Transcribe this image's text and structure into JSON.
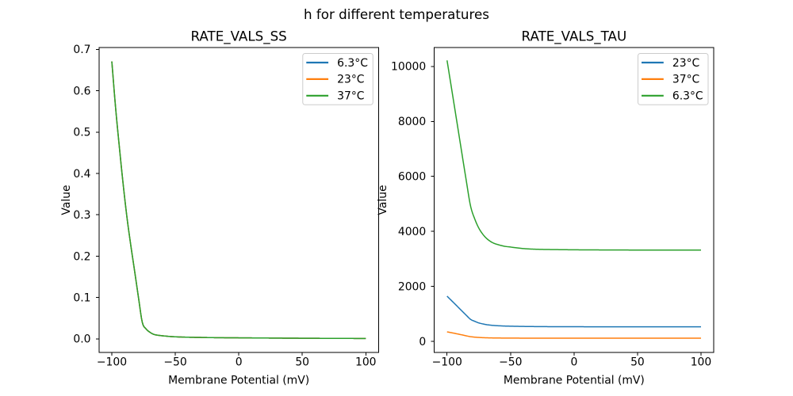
{
  "figure": {
    "suptitle": "h for different temperatures",
    "colors": {
      "blue": "#1f77b4",
      "orange": "#ff7f0e",
      "green": "#2ca02c"
    }
  },
  "chart_data": [
    {
      "type": "line",
      "title": "RATE_VALS_SS",
      "xlabel": "Membrane Potential (mV)",
      "ylabel": "Value",
      "xlim": [
        -110,
        110
      ],
      "ylim": [
        -0.0328,
        0.7046
      ],
      "xticks": [
        -100,
        -50,
        0,
        50,
        100
      ],
      "xtick_labels": [
        "−100",
        "−50",
        "0",
        "50",
        "100"
      ],
      "yticks": [
        0.0,
        0.1,
        0.2,
        0.3,
        0.4,
        0.5,
        0.6,
        0.7
      ],
      "ytick_labels": [
        "0.0",
        "0.1",
        "0.2",
        "0.3",
        "0.4",
        "0.5",
        "0.6",
        "0.7"
      ],
      "legend": {
        "position": "upper right",
        "entries": [
          {
            "label": "6.3°C",
            "color": "#1f77b4"
          },
          {
            "label": "23°C",
            "color": "#ff7f0e"
          },
          {
            "label": "37°C",
            "color": "#2ca02c"
          }
        ]
      },
      "x": [
        -100,
        -97,
        -94,
        -91,
        -88,
        -85,
        -82,
        -79,
        -76,
        -73,
        -70,
        -67,
        -64,
        -60,
        -55,
        -50,
        -40,
        -30,
        -20,
        0,
        25,
        50,
        75,
        100
      ],
      "series": [
        {
          "name": "6.3°C",
          "color": "#1f77b4",
          "values": [
            0.671,
            0.558,
            0.462,
            0.372,
            0.292,
            0.225,
            0.163,
            0.1,
            0.04,
            0.024,
            0.016,
            0.011,
            0.009,
            0.0075,
            0.006,
            0.005,
            0.004,
            0.0035,
            0.003,
            0.0025,
            0.002,
            0.0015,
            0.0012,
            0.001
          ]
        },
        {
          "name": "23°C",
          "color": "#ff7f0e",
          "values": [
            0.671,
            0.558,
            0.462,
            0.372,
            0.292,
            0.225,
            0.163,
            0.1,
            0.04,
            0.024,
            0.016,
            0.011,
            0.009,
            0.0075,
            0.006,
            0.005,
            0.004,
            0.0035,
            0.003,
            0.0025,
            0.002,
            0.0015,
            0.0012,
            0.001
          ]
        },
        {
          "name": "37°C",
          "color": "#2ca02c",
          "values": [
            0.671,
            0.558,
            0.462,
            0.372,
            0.292,
            0.225,
            0.163,
            0.1,
            0.04,
            0.024,
            0.016,
            0.011,
            0.009,
            0.0075,
            0.006,
            0.005,
            0.004,
            0.0035,
            0.003,
            0.0025,
            0.002,
            0.0015,
            0.0012,
            0.001
          ]
        }
      ]
    },
    {
      "type": "line",
      "title": "RATE_VALS_TAU",
      "xlabel": "Membrane Potential (mV)",
      "ylabel": "Value",
      "xlim": [
        -110,
        110
      ],
      "ylim": [
        -404,
        10688
      ],
      "xticks": [
        -100,
        -50,
        0,
        50,
        100
      ],
      "xtick_labels": [
        "−100",
        "−50",
        "0",
        "50",
        "100"
      ],
      "yticks": [
        0,
        2000,
        4000,
        6000,
        8000,
        10000
      ],
      "ytick_labels": [
        "0",
        "2000",
        "4000",
        "6000",
        "8000",
        "10000"
      ],
      "legend": {
        "position": "upper right",
        "entries": [
          {
            "label": "23°C",
            "color": "#1f77b4"
          },
          {
            "label": "37°C",
            "color": "#ff7f0e"
          },
          {
            "label": "6.3°C",
            "color": "#2ca02c"
          }
        ]
      },
      "x": [
        -100,
        -95,
        -90,
        -85,
        -81.5,
        -78,
        -75,
        -72,
        -69,
        -66,
        -63,
        -60,
        -55,
        -50,
        -45,
        -40,
        -35,
        -30,
        -20,
        -10,
        0,
        20,
        40,
        60,
        80,
        100
      ],
      "series": [
        {
          "name": "23°C",
          "color": "#1f77b4",
          "values": [
            1643,
            1415,
            1185,
            955,
            800,
            725,
            670,
            635,
            608,
            590,
            577,
            568,
            557,
            551,
            546,
            542,
            539,
            537,
            534,
            532,
            531,
            530,
            530,
            530,
            530,
            530
          ]
        },
        {
          "name": "37°C",
          "color": "#ff7f0e",
          "values": [
            345,
            300,
            252,
            202,
            169,
            152,
            142,
            134,
            129,
            125,
            123,
            121,
            119,
            118,
            117,
            116,
            116,
            115,
            115,
            115,
            114,
            114,
            114,
            114,
            114,
            114
          ]
        },
        {
          "name": "6.3°C",
          "color": "#2ca02c",
          "values": [
            10220,
            8780,
            7330,
            5886,
            4926,
            4430,
            4120,
            3905,
            3750,
            3640,
            3565,
            3520,
            3460,
            3430,
            3400,
            3375,
            3360,
            3350,
            3340,
            3335,
            3330,
            3325,
            3322,
            3320,
            3320,
            3320
          ]
        }
      ]
    }
  ]
}
